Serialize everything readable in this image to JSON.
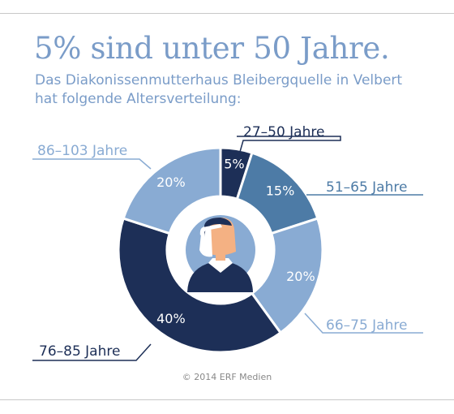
{
  "title": "5% sind unter 50 Jahre.",
  "subtitle": "Das Diakonissenmutterhaus Bleibergquelle in Velbert hat folgende Altersverteilung:",
  "credit": "© 2014 ERF Medien",
  "chart_data": {
    "type": "pie",
    "categories": [
      "27–50 Jahre",
      "51–65 Jahre",
      "66–75 Jahre",
      "76–85 Jahre",
      "86–103 Jahre"
    ],
    "values": [
      5,
      15,
      20,
      40,
      20
    ],
    "value_labels": [
      "5%",
      "15%",
      "20%",
      "40%",
      "20%"
    ],
    "colors": [
      "#1d2f57",
      "#4d7ba6",
      "#89abd3",
      "#1d2f57",
      "#89abd3"
    ],
    "label_colors": [
      "#1d2f57",
      "#4d7ba6",
      "#89abd3",
      "#1d2f57",
      "#89abd3"
    ],
    "center_icon": "nurse-icon"
  }
}
